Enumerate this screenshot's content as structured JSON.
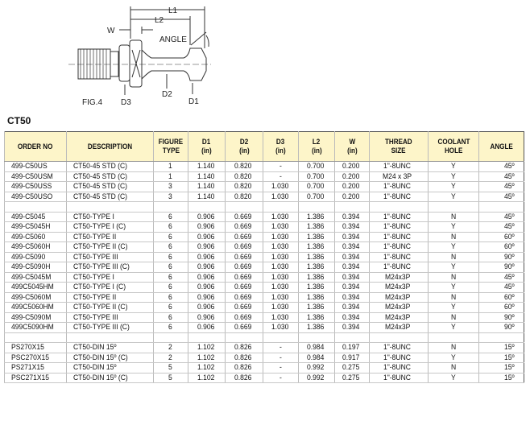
{
  "figure": {
    "caption": "FIG.4",
    "labels": {
      "l1": "L1",
      "l2": "L2",
      "w": "W",
      "angle": "ANGLE",
      "d1": "D1",
      "d2": "D2",
      "d3": "D3"
    }
  },
  "section_title": "CT50",
  "table": {
    "headers": [
      [
        "ORDER NO"
      ],
      [
        "DESCRIPTION"
      ],
      [
        "FIGURE",
        "TYPE"
      ],
      [
        "D1",
        "(in)"
      ],
      [
        "D2",
        "(in)"
      ],
      [
        "D3",
        "(in)"
      ],
      [
        "L2",
        "(in)"
      ],
      [
        "W",
        "(in)"
      ],
      [
        "THREAD",
        "SIZE"
      ],
      [
        "COOLANT",
        "HOLE"
      ],
      [
        "ANGLE"
      ]
    ],
    "rows": [
      [
        "499-C50US",
        "CT50-45 STD (C)",
        "1",
        "1.140",
        "0.820",
        "-",
        "0.700",
        "0.200",
        "1\"-8UNC",
        "Y",
        "45º"
      ],
      [
        "499-C50USM",
        "CT50-45 STD (C)",
        "1",
        "1.140",
        "0.820",
        "-",
        "0.700",
        "0.200",
        "M24 x 3P",
        "Y",
        "45º"
      ],
      [
        "499-C50USS",
        "CT50-45 STD (C)",
        "3",
        "1.140",
        "0.820",
        "1.030",
        "0.700",
        "0.200",
        "1\"-8UNC",
        "Y",
        "45º"
      ],
      [
        "499-C50USO",
        "CT50-45 STD (C)",
        "3",
        "1.140",
        "0.820",
        "1.030",
        "0.700",
        "0.200",
        "1\"-8UNC",
        "Y",
        "45º"
      ],
      [
        "",
        "",
        "",
        "",
        "",
        "",
        "",
        "",
        "",
        "",
        ""
      ],
      [
        "499-C5045",
        "CT50-TYPE I",
        "6",
        "0.906",
        "0.669",
        "1.030",
        "1.386",
        "0.394",
        "1\"-8UNC",
        "N",
        "45º"
      ],
      [
        "499-C5045H",
        "CT50-TYPE I (C)",
        "6",
        "0.906",
        "0.669",
        "1.030",
        "1.386",
        "0.394",
        "1\"-8UNC",
        "Y",
        "45º"
      ],
      [
        "499-C5060",
        "CT50-TYPE II",
        "6",
        "0.906",
        "0.669",
        "1.030",
        "1.386",
        "0.394",
        "1\"-8UNC",
        "N",
        "60º"
      ],
      [
        "499-C5060H",
        "CT50-TYPE II (C)",
        "6",
        "0.906",
        "0.669",
        "1.030",
        "1.386",
        "0.394",
        "1\"-8UNC",
        "Y",
        "60º"
      ],
      [
        "499-C5090",
        "CT50-TYPE III",
        "6",
        "0.906",
        "0.669",
        "1.030",
        "1.386",
        "0.394",
        "1\"-8UNC",
        "N",
        "90º"
      ],
      [
        "499-C5090H",
        "CT50-TYPE III (C)",
        "6",
        "0.906",
        "0.669",
        "1.030",
        "1.386",
        "0.394",
        "1\"-8UNC",
        "Y",
        "90º"
      ],
      [
        "499-C5045M",
        "CT50-TYPE I",
        "6",
        "0.906",
        "0.669",
        "1.030",
        "1.386",
        "0.394",
        "M24x3P",
        "N",
        "45º"
      ],
      [
        "499C5045HM",
        "CT50-TYPE I (C)",
        "6",
        "0.906",
        "0.669",
        "1.030",
        "1.386",
        "0.394",
        "M24x3P",
        "Y",
        "45º"
      ],
      [
        "499-C5060M",
        "CT50-TYPE II",
        "6",
        "0.906",
        "0.669",
        "1.030",
        "1.386",
        "0.394",
        "M24x3P",
        "N",
        "60º"
      ],
      [
        "499C5060HM",
        "CT50-TYPE II (C)",
        "6",
        "0.906",
        "0.669",
        "1.030",
        "1.386",
        "0.394",
        "M24x3P",
        "Y",
        "60º"
      ],
      [
        "499-C5090M",
        "CT50-TYPE III",
        "6",
        "0.906",
        "0.669",
        "1.030",
        "1.386",
        "0.394",
        "M24x3P",
        "N",
        "90º"
      ],
      [
        "499C5090HM",
        "CT50-TYPE III (C)",
        "6",
        "0.906",
        "0.669",
        "1.030",
        "1.386",
        "0.394",
        "M24x3P",
        "Y",
        "90º"
      ],
      [
        "",
        "",
        "",
        "",
        "",
        "",
        "",
        "",
        "",
        "",
        ""
      ],
      [
        "PS270X15",
        "CT50-DIN 15º",
        "2",
        "1.102",
        "0.826",
        "-",
        "0.984",
        "0.197",
        "1\"-8UNC",
        "N",
        "15º"
      ],
      [
        "PSC270X15",
        "CT50-DIN 15º (C)",
        "2",
        "1.102",
        "0.826",
        "-",
        "0.984",
        "0.917",
        "1\"-8UNC",
        "Y",
        "15º"
      ],
      [
        "PS271X15",
        "CT50-DIN 15º",
        "5",
        "1.102",
        "0.826",
        "-",
        "0.992",
        "0.275",
        "1\"-8UNC",
        "N",
        "15º"
      ],
      [
        "PSC271X15",
        "CT50-DIN 15º (C)",
        "5",
        "1.102",
        "0.826",
        "-",
        "0.992",
        "0.275",
        "1\"-8UNC",
        "Y",
        "15º"
      ]
    ]
  }
}
